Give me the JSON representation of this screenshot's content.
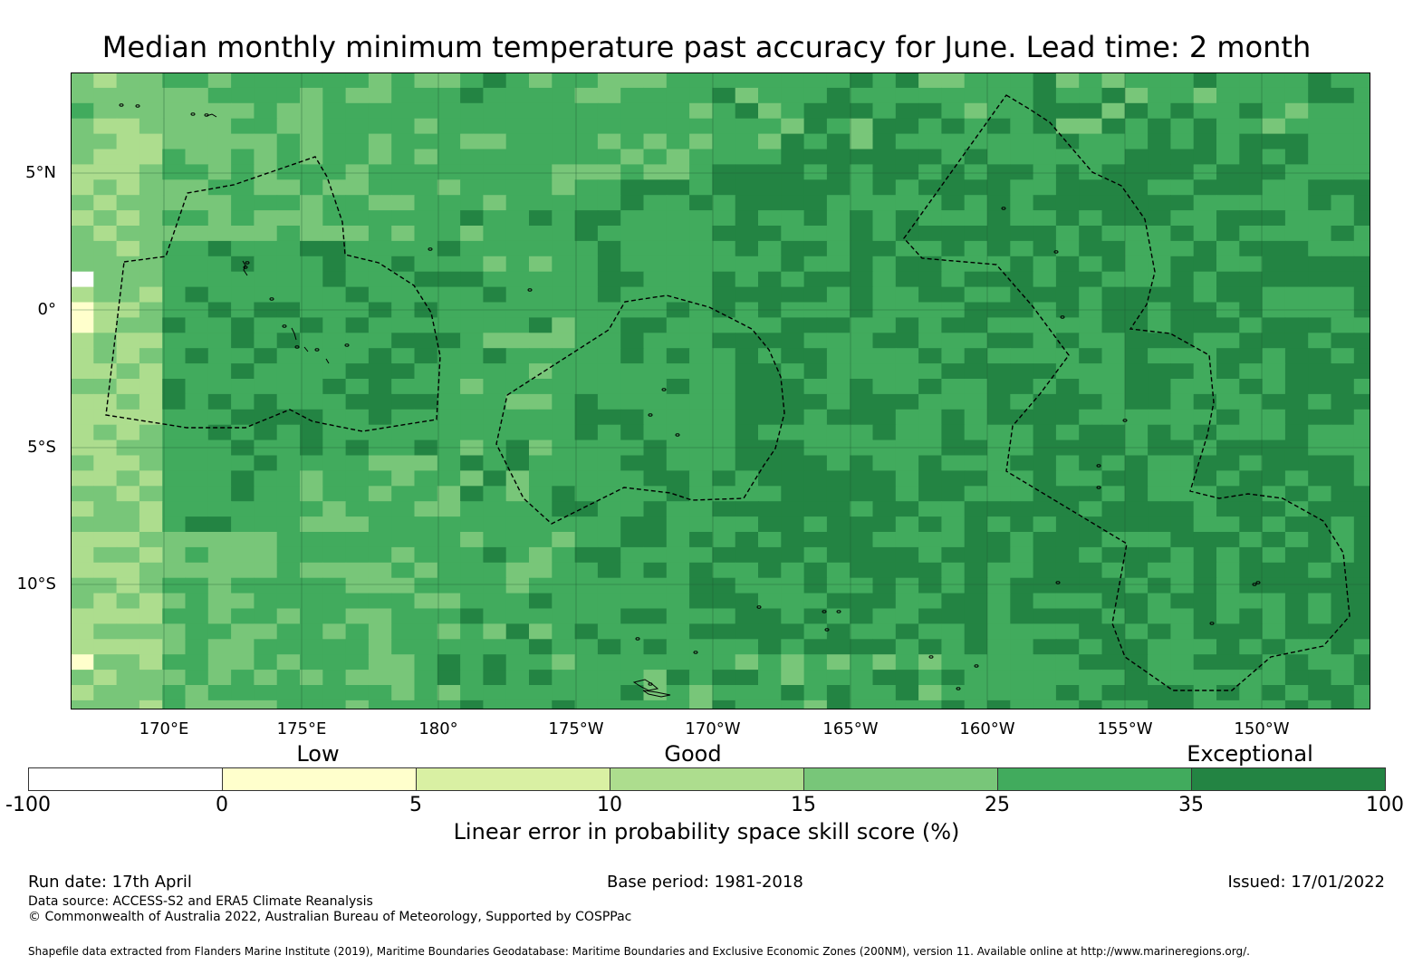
{
  "title": "Median monthly minimum temperature past accuracy for June. Lead time: 2 month",
  "map": {
    "lon_range": [
      "166.6°E",
      "142.9°W"
    ],
    "lat_range": [
      "14.5°S",
      "8.6°N"
    ],
    "lat_labels": [
      "5°N",
      "0°",
      "5°S",
      "10°S"
    ],
    "lon_labels": [
      "170°E",
      "175°E",
      "180°",
      "175°W",
      "170°W",
      "165°W",
      "160°W",
      "155°W",
      "150°W"
    ],
    "gridlines": true,
    "features": [
      "skill-score-grid",
      "coastlines",
      "eez-boundaries-dashed"
    ]
  },
  "legend": {
    "categories": [
      "Low",
      "Good",
      "Exceptional"
    ],
    "ticks": [
      "-100",
      "0",
      "5",
      "10",
      "15",
      "25",
      "35",
      "100"
    ],
    "colors": [
      "#ffffff",
      "#ffffcc",
      "#d9f0a3",
      "#addd8e",
      "#78c679",
      "#41ab5d",
      "#238443"
    ],
    "title": "Linear error in probability space skill score (%)"
  },
  "footer": {
    "run_date": "Run date: 17th April",
    "base_period": "Base period: 1981-2018",
    "issued": "Issued: 17/01/2022",
    "data_source": "Data source: ACCESS-S2 and ERA5 Climate Reanalysis",
    "copyright": "© Commonwealth of Australia 2022, Australian Bureau of Meteorology, Supported by COSPPac",
    "shapefile": "Shapefile data extracted from Flanders Marine Institute (2019), Maritime Boundaries Geodatabase: Maritime Boundaries and Exclusive Economic Zones (200NM), version 11. Available online at http://www.marineregions.org/."
  }
}
